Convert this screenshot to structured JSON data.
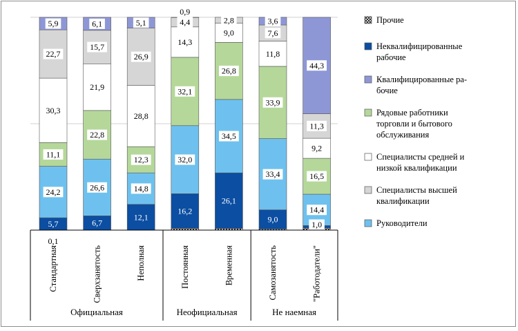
{
  "chart_data": {
    "type": "bar",
    "stacked": true,
    "normalized_percent": true,
    "categories": [
      "Стандартная",
      "Сверхзанятость",
      "Неполная",
      "Постоянная",
      "Временная",
      "Самозанятость",
      "\"Работодатели\""
    ],
    "groups": [
      {
        "label": "Официальная",
        "categories": [
          "Стандартная",
          "Сверхзанятость",
          "Неполная"
        ]
      },
      {
        "label": "Неофициальная",
        "categories": [
          "Постоянная",
          "Временная"
        ]
      },
      {
        "label": "Не наемная",
        "categories": [
          "Самозанятость",
          "\"Работодатели\""
        ]
      }
    ],
    "series": [
      {
        "name": "Прочие",
        "color": "#ffffff",
        "values": [
          0.1,
          0.0,
          0.0,
          0.9,
          0.8,
          0.5,
          1.0
        ],
        "labels": [
          "0,1",
          "",
          "",
          "0,9",
          "",
          "",
          "1,0"
        ]
      },
      {
        "name": "Неквалифицированные рабочие",
        "color": "#0b4ea2",
        "values": [
          5.7,
          6.7,
          12.1,
          16.2,
          26.1,
          9.0,
          1.1
        ],
        "labels": [
          "5,7",
          "6,7",
          "12,1",
          "16,2",
          "26,1",
          "9,0",
          ""
        ]
      },
      {
        "name": "Руководители",
        "color": "#6ec1ee",
        "values": [
          24.2,
          26.6,
          14.8,
          32.0,
          34.5,
          33.4,
          14.4
        ],
        "labels": [
          "24,2",
          "26,6",
          "14,8",
          "32,0",
          "34,5",
          "33,4",
          "14,4"
        ]
      },
      {
        "name": "Рядовые работники торговли и бытового обслуживания",
        "color": "#b5d89a",
        "values": [
          11.1,
          22.8,
          12.3,
          32.1,
          26.8,
          33.9,
          16.5
        ],
        "labels": [
          "11,1",
          "22,8",
          "12,3",
          "32,1",
          "26,8",
          "33,9",
          "16,5"
        ]
      },
      {
        "name": "Специалисты средней и низкой квалификации",
        "color": "#ffffff",
        "values": [
          30.3,
          21.9,
          28.8,
          14.3,
          9.0,
          11.8,
          9.2
        ],
        "labels": [
          "30,3",
          "21,9",
          "28,8",
          "14,3",
          "9,0",
          "11,8",
          "9,2"
        ]
      },
      {
        "name": "Специалисты высшей квалификации",
        "color": "#d6d6d6",
        "values": [
          22.7,
          15.7,
          26.9,
          4.4,
          2.8,
          7.6,
          11.3
        ],
        "labels": [
          "22,7",
          "15,7",
          "26,9",
          "4,4",
          "2,8",
          "7,6",
          "11,3"
        ]
      },
      {
        "name": "Квалифицированные рабочие",
        "color": "#8e97d6",
        "values": [
          5.9,
          6.1,
          5.1,
          0.1,
          0.0,
          3.6,
          44.3
        ],
        "labels": [
          "5,9",
          "6,1",
          "5,1",
          "",
          "",
          "3,6",
          "44,3"
        ]
      }
    ],
    "legend": [
      {
        "name": "Прочие",
        "lines": [
          "Прочие"
        ],
        "color": "#ffffff",
        "pattern": "hatch"
      },
      {
        "name": "Неквалифицированные рабочие",
        "lines": [
          "Неквалифицированные",
          "рабочие"
        ],
        "color": "#0b4ea2"
      },
      {
        "name": "Квалифицированные рабочие",
        "lines": [
          "Квалифицированные ра-",
          "бочие"
        ],
        "color": "#8e97d6"
      },
      {
        "name": "Рядовые работники торговли и бытового обслуживания",
        "lines": [
          "Рядовые работники",
          "торговли и бытового",
          "обслуживания"
        ],
        "color": "#b5d89a"
      },
      {
        "name": "Специалисты средней и низкой квалификации",
        "lines": [
          "Специалисты средней и",
          "низкой квалификации"
        ],
        "color": "#ffffff"
      },
      {
        "name": "Специалисты высшей квалификации",
        "lines": [
          "Специалисты высшей",
          "квалификации"
        ],
        "color": "#d6d6d6"
      },
      {
        "name": "Руководители",
        "lines": [
          "Руководители"
        ],
        "color": "#6ec1ee"
      }
    ],
    "legend_position": "right",
    "grid": true
  }
}
